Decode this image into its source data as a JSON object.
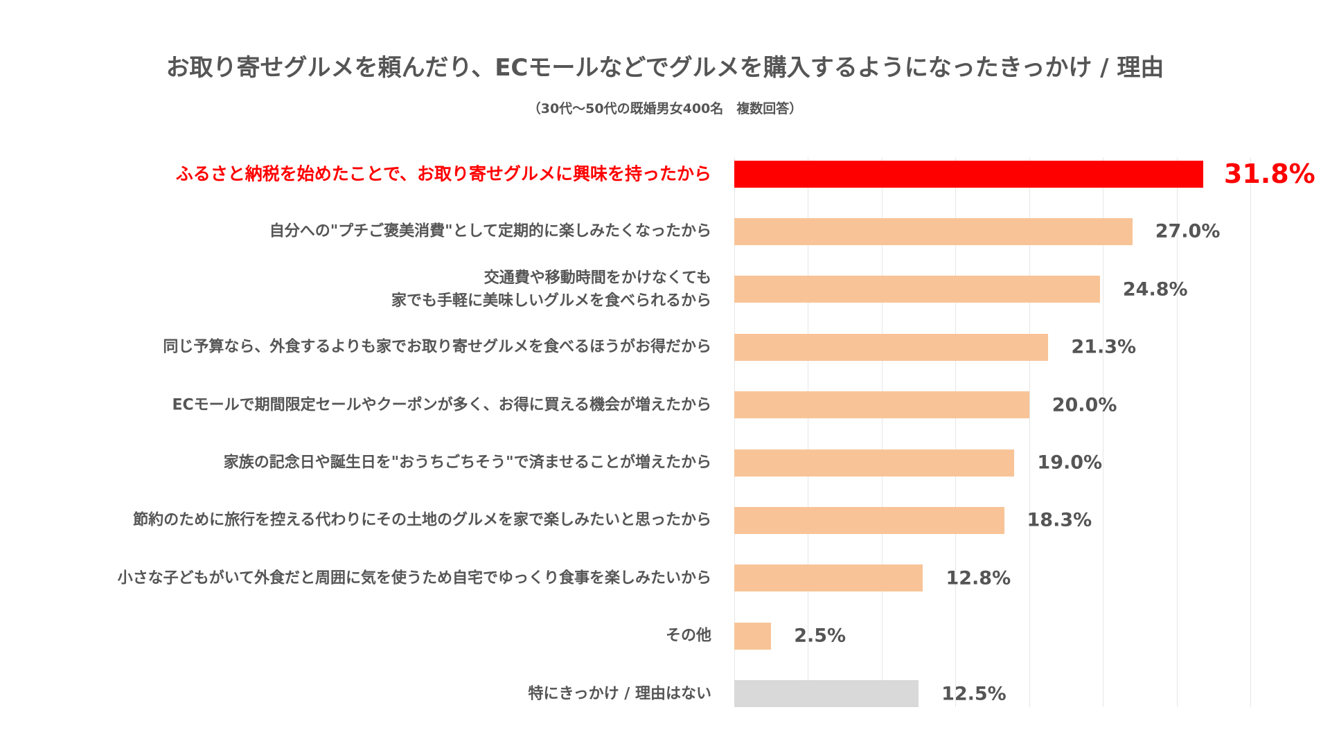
{
  "chart_data": {
    "type": "barh",
    "title": "お取り寄せグルメを頼んだり、ECモールなどでグルメを購入するようになったきっかけ / 理由",
    "subtitle": "（30代～50代の既婚男女400名　複数回答）",
    "categories": [
      "ふるさと納税を始めたことで、お取り寄せグルメに興味を持ったから",
      "自分への\"プチご褒美消費\"として定期的に楽しみたくなったから",
      "交通費や移動時間をかけなくても\n家でも手軽に美味しいグルメを食べられるから",
      "同じ予算なら、外食するよりも家でお取り寄せグルメを食べるほうがお得だから",
      "ECモールで期間限定セールやクーポンが多く、お得に買える機会が増えたから",
      "家族の記念日や誕生日を\"おうちごちそう\"で済ませることが増えたから",
      "節約のために旅行を控える代わりにその土地のグルメを家で楽しみたいと思ったから",
      "小さな子どもがいて外食だと周囲に気を使うため自宅でゆっくり食事を楽しみたいから",
      "その他",
      "特にきっかけ / 理由はない"
    ],
    "values": [
      31.8,
      27.0,
      24.8,
      21.3,
      20.0,
      19.0,
      18.3,
      12.8,
      2.5,
      12.5
    ],
    "value_labels": [
      "31.8%",
      "27.0%",
      "24.8%",
      "21.3%",
      "20.0%",
      "19.0%",
      "18.3%",
      "12.8%",
      "2.5%",
      "12.5%"
    ],
    "colors": [
      "#ff0000",
      "#f8c497",
      "#f8c497",
      "#f8c497",
      "#f8c497",
      "#f8c497",
      "#f8c497",
      "#f8c497",
      "#f8c497",
      "#d9d9d9"
    ],
    "highlight_index": 0,
    "highlight_color": "#ff0000",
    "xlim": [
      0,
      35
    ],
    "xticks": [
      0,
      5,
      10,
      15,
      20,
      25,
      30,
      35
    ],
    "grid": true
  }
}
